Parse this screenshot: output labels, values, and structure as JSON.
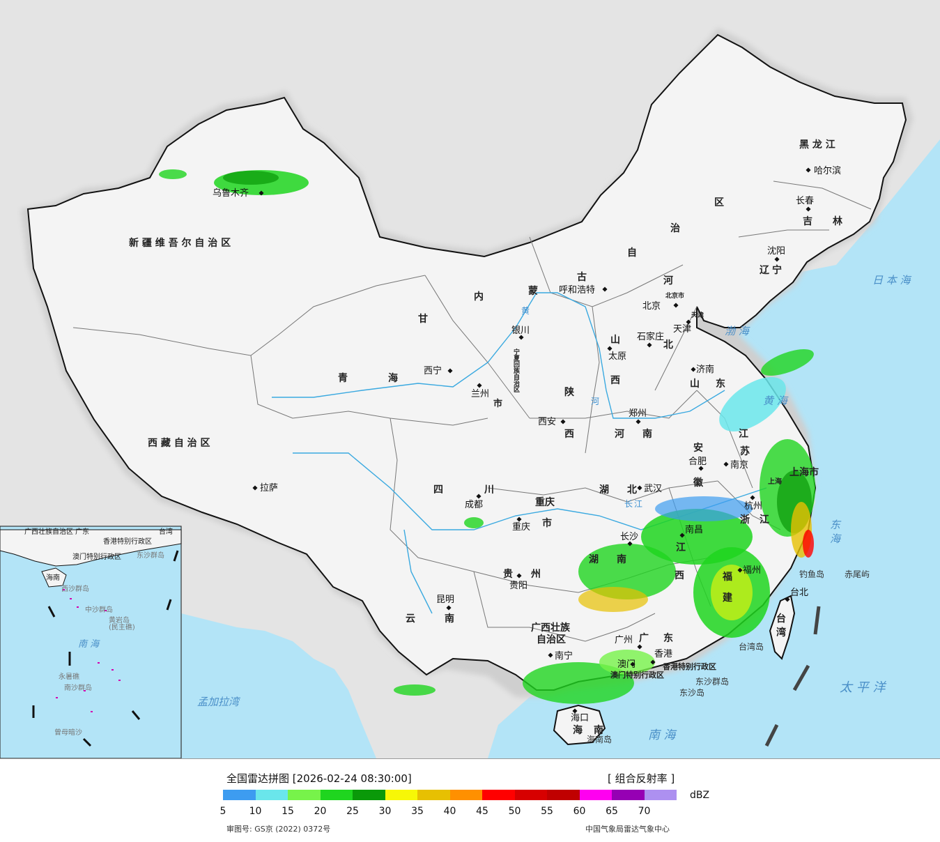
{
  "colors": {
    "sea": "#b3e4f7",
    "foreign_land": "#e4e4e4",
    "china_land": "#f4f4f4",
    "border": "#111111",
    "river": "#3aa9e0"
  },
  "regions": {
    "xinjiang": "新 疆 维 吾 尔 自 治 区",
    "xizang": "西 藏 自 治 区",
    "qinghai_a": "青",
    "qinghai_b": "海",
    "gansu": "甘",
    "sichuan_a": "四",
    "sichuan_b": "川",
    "yunnan_a": "云",
    "yunnan_b": "南",
    "guizhou_a": "贵",
    "guizhou_b": "州",
    "guangxi_a": "广西壮族",
    "guangxi_b": "自治区",
    "guangdong_a": "广",
    "guangdong_b": "东",
    "hainan_a": "海",
    "hainan_b": "南",
    "hunan_a": "湖",
    "hunan_b": "南",
    "hubei_a": "湖",
    "hubei_b": "北",
    "henan_a": "河",
    "henan_b": "南",
    "shaanxi_a": "陕",
    "shaanxi_b": "西",
    "shanxi_a": "山",
    "shanxi_b": "西",
    "hebei_a": "河",
    "hebei_b": "北",
    "shandong_a": "山",
    "shandong_b": "东",
    "jiangsu_a": "江",
    "jiangsu_b": "苏",
    "anhui_a": "安",
    "anhui_b": "徽",
    "zhejiang_a": "浙",
    "zhejiang_b": "江",
    "jiangxi_a": "江",
    "jiangxi_b": "西",
    "fujian_a": "福",
    "fujian_b": "建",
    "taiwan_a": "台",
    "taiwan_b": "湾",
    "liaoning_a": "辽",
    "liaoning_b": "宁",
    "jilin_a": "吉",
    "jilin_b": "林",
    "heilongjiang": "黑 龙 江",
    "neimenggu_a": "内",
    "neimenggu_b": "蒙",
    "neimenggu_c": "古",
    "neimenggu_d": "自",
    "neimenggu_e": "治",
    "neimenggu_f": "区",
    "ningxia": "宁夏回族自治区",
    "chongqing_a": "重庆",
    "chongqing_b": "市",
    "shanghai": "上海市",
    "hk_sar": "香港特别行政区",
    "macao_sar": "澳门特别行政区",
    "beijing_small": "北京市",
    "tianjin_small": "天津",
    "shanghai_small": "上海"
  },
  "cities": {
    "wulumuqi": "乌鲁木齐",
    "lasa": "拉萨",
    "xining": "西宁",
    "lanzhou": "兰州",
    "yinchuan": "银川",
    "huhehaote": "呼和浩特",
    "beijing": "北京",
    "tianjin": "天津",
    "shijiazhuang": "石家庄",
    "taiyuan": "太原",
    "jinan": "济南",
    "xian": "西安",
    "zhengzhou": "郑州",
    "hefei": "合肥",
    "nanjing": "南京",
    "hangzhou": "杭州",
    "wuhan": "武汉",
    "chengdu": "成都",
    "chongqing": "重庆",
    "guiyang": "贵阳",
    "kunming": "昆明",
    "nanning": "南宁",
    "guangzhou": "广州",
    "aomen": "澳门",
    "xianggang": "香港",
    "haikou": "海口",
    "changsha": "长沙",
    "nanchang": "南昌",
    "fuzhou": "福州",
    "taibei": "台北",
    "shenyang": "沈阳",
    "changchun": "长春",
    "haerbin": "哈尔滨"
  },
  "seas": {
    "ribenhai": "日 本 海",
    "bohai": "渤 海",
    "huanghai": "黄 海",
    "donghai": "东 海",
    "taipingyang": "太 平 洋",
    "nanhai": "南 海",
    "mengjialawan": "孟加拉湾"
  },
  "islands": {
    "diaoyudao": "钓鱼岛",
    "chiweiyu": "赤尾屿",
    "taiwandao": "台湾岛",
    "dongshaqundao": "东沙群岛",
    "dongshadao": "东沙岛",
    "hainandao": "海南岛"
  },
  "inset": {
    "guangxi": "广西壮族自治区",
    "guangdong": "广东",
    "taiwan": "台湾",
    "hk": "香港特别行政区",
    "macao": "澳门特别行政区",
    "dongsha": "东沙群岛",
    "hainan": "海南",
    "xisha": "西沙群岛",
    "zhongsha": "中沙群岛",
    "huangyan": "黄岩岛",
    "huangyan2": "(民主礁)",
    "nanhai": "南  海",
    "yongshu": "永暑礁",
    "nansha": "南沙群岛",
    "zengmu": "曾母暗沙"
  },
  "rivers": {
    "huang": "黄",
    "he": "河",
    "chang": "长",
    "jiang": "江"
  },
  "legend": {
    "title": "全国雷达拼图 [2026-02-24 08:30:00]",
    "product": "[ 组合反射率 ]",
    "unit": "dBZ",
    "colors": [
      "#3d9cf0",
      "#6ae6eb",
      "#77f34a",
      "#1fd51f",
      "#0a9909",
      "#f7f707",
      "#e7c002",
      "#ff9000",
      "#ff0000",
      "#d70000",
      "#c00000",
      "#ff00f0",
      "#9600b4",
      "#ad90f0"
    ],
    "ticks": [
      "5",
      "10",
      "15",
      "20",
      "25",
      "30",
      "35",
      "40",
      "45",
      "50",
      "55",
      "60",
      "65",
      "70"
    ],
    "approval": "审图号: GS京 (2022) 0372号",
    "source": "中国气象局雷达气象中心"
  }
}
